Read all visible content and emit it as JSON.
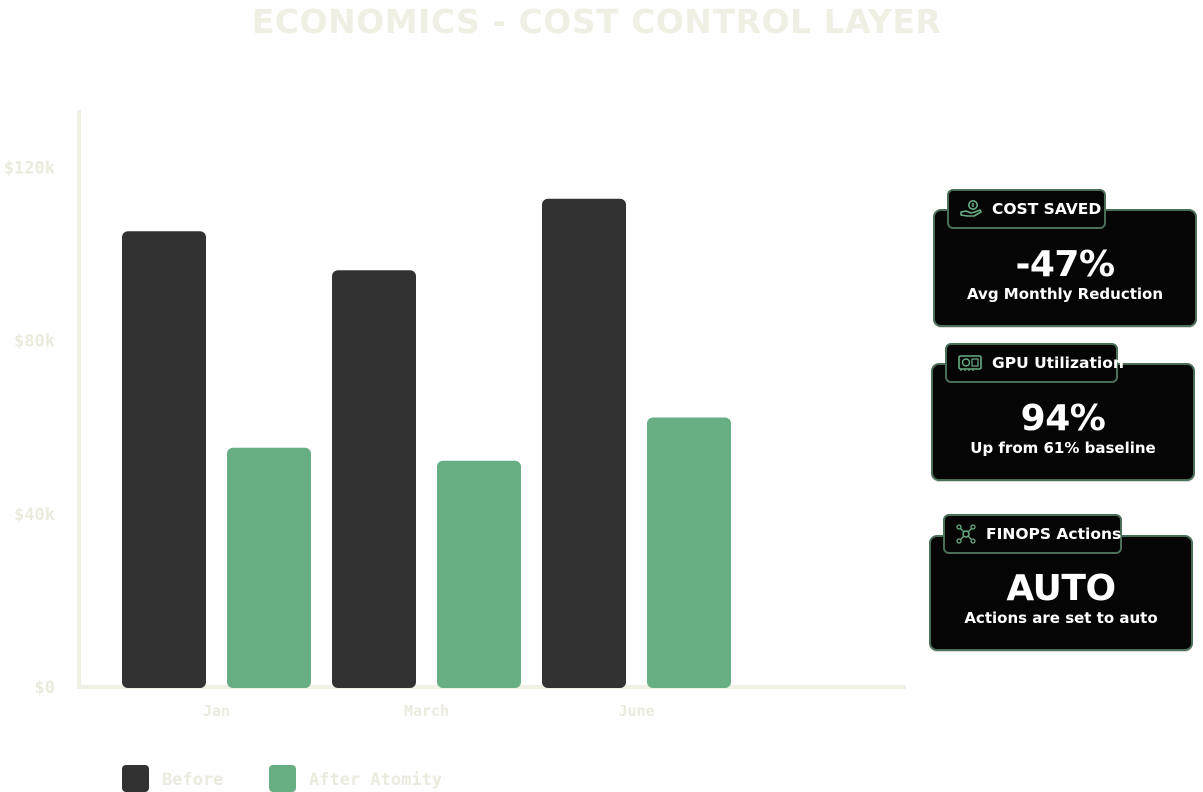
{
  "page": {
    "title": "ECONOMICS - COST CONTROL LAYER"
  },
  "chart_data": {
    "type": "bar",
    "categories": [
      "Jan",
      "March",
      "June"
    ],
    "series": [
      {
        "name": "Before",
        "values": [
          105000,
          96000,
          112500
        ],
        "color": "#323232"
      },
      {
        "name": "After Atomity",
        "values": [
          55000,
          52000,
          62000
        ],
        "color": "#67ae84"
      }
    ],
    "yticks": [
      0,
      40000,
      80000,
      120000
    ],
    "ytick_labels": [
      "$0",
      "$40k",
      "$80k",
      "$120k"
    ],
    "ylim": [
      0,
      133000
    ],
    "xlabel": "",
    "ylabel": "",
    "grid": false,
    "legend": "bottom-left"
  },
  "cards": [
    {
      "label": "COST SAVED",
      "icon": "money-hand-icon",
      "value": "-47%",
      "subtitle": "Avg Monthly Reduction"
    },
    {
      "label": "GPU Utilization",
      "icon": "gpu-card-icon",
      "value": "94%",
      "subtitle": "Up from 61% baseline"
    },
    {
      "label": "FINOPS Actions",
      "icon": "automation-network-icon",
      "value": "AUTO",
      "subtitle": "Actions are set to auto"
    }
  ],
  "colors": {
    "accent": "#67ae84",
    "dark": "#323232",
    "card_border": "#4a6e58",
    "muted_text": "#ebeadf"
  }
}
